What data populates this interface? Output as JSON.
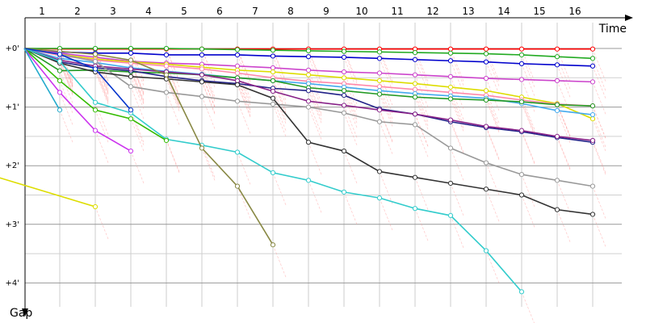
{
  "chart_data": {
    "type": "line",
    "xlabel": "Time",
    "ylabel": "Gap",
    "x_ticks": [
      "1",
      "2",
      "3",
      "4",
      "5",
      "6",
      "7",
      "8",
      "9",
      "10",
      "11",
      "12",
      "13",
      "14",
      "15",
      "16"
    ],
    "y_ticks": [
      "+0'",
      "+1'",
      "+2'",
      "+3'",
      "+4'"
    ],
    "xlim": [
      0,
      17
    ],
    "ylim": [
      0,
      4.5
    ],
    "grid": true,
    "series": [
      {
        "color": "#ff0000",
        "points": [
          [
            0,
            0
          ],
          [
            1,
            0.01
          ],
          [
            2,
            0.01
          ],
          [
            3,
            0.01
          ],
          [
            4,
            0.01
          ],
          [
            5,
            0.01
          ],
          [
            6,
            0.01
          ],
          [
            7,
            0.01
          ],
          [
            8,
            0.01
          ],
          [
            9,
            0.01
          ],
          [
            10,
            0.01
          ],
          [
            11,
            0.01
          ],
          [
            12,
            0.01
          ],
          [
            13,
            0.01
          ],
          [
            14,
            0.01
          ],
          [
            15,
            0.01
          ],
          [
            16,
            0.01
          ]
        ]
      },
      {
        "color": "#22aa22",
        "points": [
          [
            0,
            0
          ],
          [
            1,
            0.0
          ],
          [
            2,
            0.0
          ],
          [
            3,
            0.0
          ],
          [
            4,
            0.0
          ],
          [
            5,
            0.01
          ],
          [
            6,
            0.02
          ],
          [
            7,
            0.03
          ],
          [
            8,
            0.04
          ],
          [
            9,
            0.05
          ],
          [
            10,
            0.06
          ],
          [
            11,
            0.07
          ],
          [
            12,
            0.08
          ],
          [
            13,
            0.09
          ],
          [
            14,
            0.11
          ],
          [
            15,
            0.14
          ],
          [
            16,
            0.17
          ]
        ]
      },
      {
        "color": "#0000cc",
        "points": [
          [
            0,
            0
          ],
          [
            1,
            0.06
          ],
          [
            2,
            0.08
          ],
          [
            3,
            0.08
          ],
          [
            4,
            0.11
          ],
          [
            5,
            0.11
          ],
          [
            6,
            0.11
          ],
          [
            7,
            0.13
          ],
          [
            8,
            0.14
          ],
          [
            9,
            0.15
          ],
          [
            10,
            0.17
          ],
          [
            11,
            0.19
          ],
          [
            12,
            0.21
          ],
          [
            13,
            0.23
          ],
          [
            14,
            0.26
          ],
          [
            15,
            0.28
          ],
          [
            16,
            0.3
          ]
        ]
      },
      {
        "color": "#cc44cc",
        "points": [
          [
            0,
            0
          ],
          [
            1,
            0.08
          ],
          [
            2,
            0.15
          ],
          [
            3,
            0.22
          ],
          [
            4,
            0.25
          ],
          [
            5,
            0.27
          ],
          [
            6,
            0.3
          ],
          [
            7,
            0.33
          ],
          [
            8,
            0.37
          ],
          [
            9,
            0.4
          ],
          [
            10,
            0.42
          ],
          [
            11,
            0.45
          ],
          [
            12,
            0.48
          ],
          [
            13,
            0.51
          ],
          [
            14,
            0.53
          ],
          [
            15,
            0.55
          ],
          [
            16,
            0.57
          ]
        ]
      },
      {
        "color": "#dddd00",
        "points": [
          [
            0,
            0
          ],
          [
            1,
            0.1
          ],
          [
            2,
            0.18
          ],
          [
            3,
            0.23
          ],
          [
            4,
            0.27
          ],
          [
            5,
            0.32
          ],
          [
            6,
            0.37
          ],
          [
            7,
            0.4
          ],
          [
            8,
            0.45
          ],
          [
            9,
            0.5
          ],
          [
            10,
            0.55
          ],
          [
            11,
            0.6
          ],
          [
            12,
            0.66
          ],
          [
            13,
            0.72
          ],
          [
            14,
            0.83
          ],
          [
            15,
            0.94
          ],
          [
            16,
            1.2
          ]
        ]
      },
      {
        "color": "#ff88aa",
        "points": [
          [
            0,
            0
          ],
          [
            1,
            0.12
          ],
          [
            2,
            0.2
          ],
          [
            3,
            0.25
          ],
          [
            4,
            0.3
          ],
          [
            5,
            0.35
          ],
          [
            6,
            0.42
          ],
          [
            7,
            0.5
          ],
          [
            8,
            0.56
          ],
          [
            9,
            0.6
          ],
          [
            10,
            0.65
          ],
          [
            11,
            0.7
          ],
          [
            12,
            0.75
          ],
          [
            13,
            0.8
          ],
          [
            14,
            0.88
          ],
          [
            15,
            0.95
          ],
          [
            16,
            0.98
          ]
        ]
      },
      {
        "color": "#44aaee",
        "points": [
          [
            0,
            0
          ],
          [
            1,
            0.17
          ],
          [
            2,
            0.24
          ],
          [
            3,
            0.33
          ],
          [
            4,
            0.39
          ],
          [
            5,
            0.44
          ],
          [
            6,
            0.5
          ],
          [
            7,
            0.55
          ],
          [
            8,
            0.6
          ],
          [
            9,
            0.66
          ],
          [
            10,
            0.72
          ],
          [
            11,
            0.77
          ],
          [
            12,
            0.81
          ],
          [
            13,
            0.85
          ],
          [
            14,
            0.94
          ],
          [
            15,
            1.06
          ],
          [
            16,
            1.13
          ]
        ]
      },
      {
        "color": "#229922",
        "points": [
          [
            0,
            0
          ],
          [
            1,
            0.38
          ],
          [
            2,
            0.37
          ],
          [
            3,
            0.4
          ],
          [
            4,
            0.42
          ],
          [
            5,
            0.45
          ],
          [
            6,
            0.5
          ],
          [
            7,
            0.55
          ],
          [
            8,
            0.67
          ],
          [
            9,
            0.72
          ],
          [
            10,
            0.78
          ],
          [
            11,
            0.83
          ],
          [
            12,
            0.86
          ],
          [
            13,
            0.88
          ],
          [
            14,
            0.91
          ],
          [
            15,
            0.96
          ],
          [
            16,
            0.98
          ]
        ]
      },
      {
        "color": "#222288",
        "points": [
          [
            0,
            0
          ],
          [
            1,
            0.23
          ],
          [
            2,
            0.33
          ],
          [
            3,
            0.38
          ],
          [
            4,
            0.48
          ],
          [
            5,
            0.55
          ],
          [
            6,
            0.6
          ],
          [
            7,
            0.68
          ],
          [
            8,
            0.72
          ],
          [
            9,
            0.8
          ],
          [
            10,
            1.03
          ],
          [
            11,
            1.12
          ],
          [
            12,
            1.25
          ],
          [
            13,
            1.35
          ],
          [
            14,
            1.42
          ],
          [
            15,
            1.52
          ],
          [
            16,
            1.6
          ]
        ]
      },
      {
        "color": "#882288",
        "points": [
          [
            0,
            0
          ],
          [
            1,
            0.2
          ],
          [
            2,
            0.3
          ],
          [
            3,
            0.35
          ],
          [
            4,
            0.4
          ],
          [
            5,
            0.45
          ],
          [
            6,
            0.55
          ],
          [
            7,
            0.73
          ],
          [
            8,
            0.9
          ],
          [
            9,
            0.97
          ],
          [
            10,
            1.05
          ],
          [
            11,
            1.12
          ],
          [
            12,
            1.22
          ],
          [
            13,
            1.33
          ],
          [
            14,
            1.4
          ],
          [
            15,
            1.5
          ],
          [
            16,
            1.57
          ]
        ]
      },
      {
        "color": "#999999",
        "points": [
          [
            0,
            0
          ],
          [
            1,
            0.1
          ],
          [
            2,
            0.22
          ],
          [
            3,
            0.65
          ],
          [
            4,
            0.75
          ],
          [
            5,
            0.82
          ],
          [
            6,
            0.9
          ],
          [
            7,
            0.95
          ],
          [
            8,
            1.0
          ],
          [
            9,
            1.1
          ],
          [
            10,
            1.25
          ],
          [
            11,
            1.3
          ],
          [
            12,
            1.7
          ],
          [
            13,
            1.95
          ],
          [
            14,
            2.15
          ],
          [
            15,
            2.25
          ],
          [
            16,
            2.35
          ]
        ]
      },
      {
        "color": "#333333",
        "points": [
          [
            0,
            0
          ],
          [
            1,
            0.25
          ],
          [
            2,
            0.4
          ],
          [
            3,
            0.48
          ],
          [
            4,
            0.52
          ],
          [
            5,
            0.57
          ],
          [
            6,
            0.62
          ],
          [
            7,
            0.85
          ],
          [
            8,
            1.6
          ],
          [
            9,
            1.75
          ],
          [
            10,
            2.1
          ],
          [
            11,
            2.2
          ],
          [
            12,
            2.3
          ],
          [
            13,
            2.4
          ],
          [
            14,
            2.5
          ],
          [
            15,
            2.75
          ],
          [
            16,
            2.83
          ]
        ]
      },
      {
        "color": "#33cccc",
        "points": [
          [
            0,
            0
          ],
          [
            1,
            0.22
          ],
          [
            2,
            0.92
          ],
          [
            3,
            1.1
          ],
          [
            4,
            1.55
          ],
          [
            5,
            1.65
          ],
          [
            6,
            1.77
          ],
          [
            7,
            2.12
          ],
          [
            8,
            2.25
          ],
          [
            9,
            2.45
          ],
          [
            10,
            2.55
          ],
          [
            11,
            2.73
          ],
          [
            12,
            2.85
          ],
          [
            13,
            3.45
          ],
          [
            14,
            4.15
          ]
        ]
      },
      {
        "color": "#888844",
        "points": [
          [
            0,
            0
          ],
          [
            1,
            0.05
          ],
          [
            2,
            0.1
          ],
          [
            3,
            0.2
          ],
          [
            4,
            0.45
          ],
          [
            5,
            1.7
          ],
          [
            6,
            2.35
          ],
          [
            7,
            3.35
          ]
        ]
      },
      {
        "color": "#0033cc",
        "points": [
          [
            0,
            0
          ],
          [
            1,
            0.1
          ],
          [
            2,
            0.35
          ],
          [
            3,
            1.05
          ]
        ]
      },
      {
        "color": "#33bb00",
        "points": [
          [
            0,
            0
          ],
          [
            1,
            0.55
          ],
          [
            2,
            1.05
          ],
          [
            3,
            1.2
          ],
          [
            4,
            1.57
          ]
        ]
      },
      {
        "color": "#cc33ee",
        "points": [
          [
            0,
            0
          ],
          [
            1,
            0.75
          ],
          [
            2,
            1.4
          ],
          [
            3,
            1.75
          ]
        ]
      },
      {
        "color": "#22aacc",
        "points": [
          [
            0,
            0
          ],
          [
            1,
            1.05
          ]
        ]
      },
      {
        "color": "#dddd00",
        "points": [
          [
            -1,
            2.15
          ],
          [
            2,
            2.7
          ]
        ]
      }
    ]
  }
}
